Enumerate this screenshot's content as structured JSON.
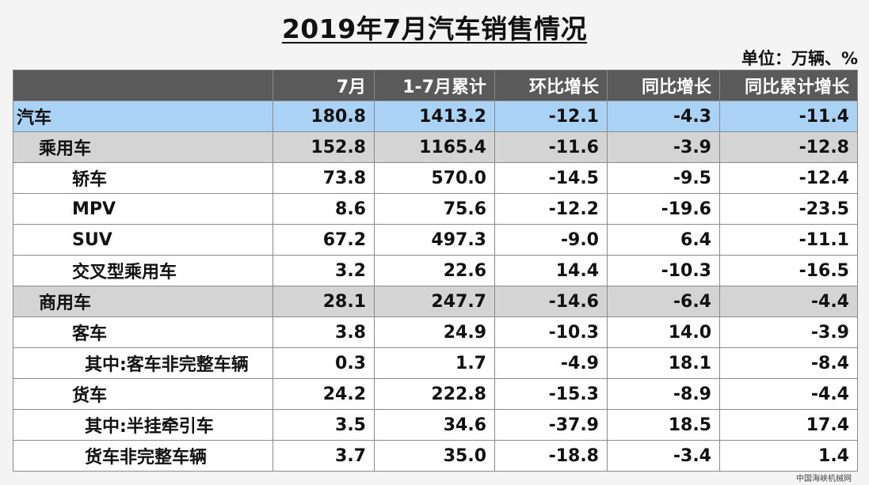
{
  "title": "2019年7月汽车销售情况",
  "unit": "单位：万辆、%",
  "columns": [
    "",
    "7月",
    "1-7月累计",
    "环比增长",
    "同比增长",
    "同比累计增长"
  ],
  "rows": [
    {
      "label": "汽车",
      "level": 0,
      "style": "auto",
      "values": [
        "180.8",
        "1413.2",
        "-12.1",
        "-4.3",
        "-11.4"
      ]
    },
    {
      "label": "乘用车",
      "level": 1,
      "style": "cat",
      "values": [
        "152.8",
        "1165.4",
        "-11.6",
        "-3.9",
        "-12.8"
      ]
    },
    {
      "label": "轿车",
      "level": 2,
      "style": "norm",
      "values": [
        "73.8",
        "570.0",
        "-14.5",
        "-9.5",
        "-12.4"
      ]
    },
    {
      "label": "MPV",
      "level": 2,
      "style": "norm",
      "values": [
        "8.6",
        "75.6",
        "-12.2",
        "-19.6",
        "-23.5"
      ]
    },
    {
      "label": "SUV",
      "level": 2,
      "style": "norm",
      "values": [
        "67.2",
        "497.3",
        "-9.0",
        "6.4",
        "-11.1"
      ]
    },
    {
      "label": "交叉型乘用车",
      "level": 2,
      "style": "norm",
      "values": [
        "3.2",
        "22.6",
        "14.4",
        "-10.3",
        "-16.5"
      ]
    },
    {
      "label": "商用车",
      "level": 1,
      "style": "cat",
      "values": [
        "28.1",
        "247.7",
        "-14.6",
        "-6.4",
        "-4.4"
      ]
    },
    {
      "label": "客车",
      "level": 2,
      "style": "norm",
      "values": [
        "3.8",
        "24.9",
        "-10.3",
        "14.0",
        "-3.9"
      ]
    },
    {
      "label": "其中:客车非完整车辆",
      "level": 3,
      "style": "norm",
      "values": [
        "0.3",
        "1.7",
        "-4.9",
        "18.1",
        "-8.4"
      ]
    },
    {
      "label": "货车",
      "level": 2,
      "style": "norm",
      "values": [
        "24.2",
        "222.8",
        "-15.3",
        "-8.9",
        "-4.4"
      ]
    },
    {
      "label": "其中:半挂牵引车",
      "level": 3,
      "style": "norm",
      "values": [
        "3.5",
        "34.6",
        "-37.9",
        "18.5",
        "17.4"
      ]
    },
    {
      "label": "货车非完整车辆",
      "level": 3,
      "style": "norm",
      "values": [
        "3.7",
        "35.0",
        "-18.8",
        "-3.4",
        "1.4"
      ]
    }
  ],
  "watermark": "中国海峡机械网",
  "colors": {
    "header_bg": "#5a5a5a",
    "total_row_bg": "#a9d2f5",
    "category_row_bg": "#d4d4d4",
    "row_bg": "#ffffff"
  }
}
